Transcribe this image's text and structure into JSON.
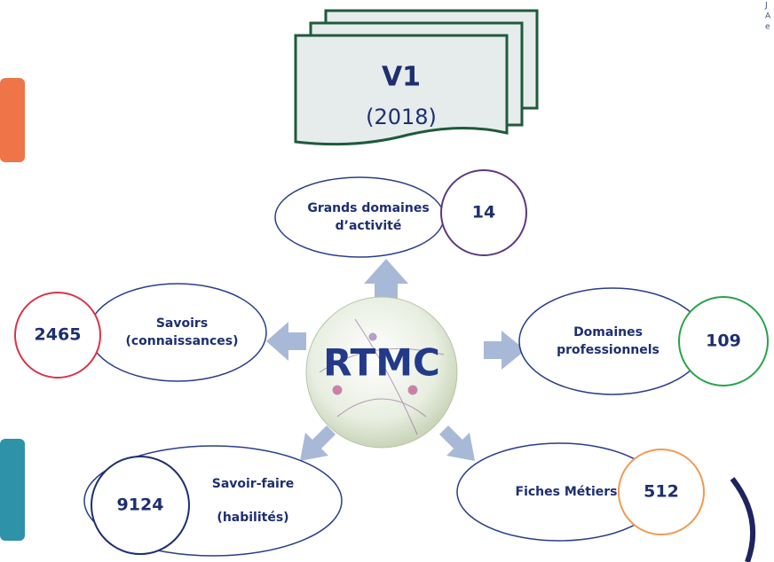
{
  "header": {
    "version": "V1",
    "year": "(2018)"
  },
  "center": "RTMC",
  "corner_text": [
    "J",
    "A",
    "e"
  ],
  "nodes": [
    {
      "label_lines": [
        "Grands domaines",
        "d’activité"
      ],
      "count": 14
    },
    {
      "label_lines": [
        "Savoirs",
        "(connaissances)"
      ],
      "count": 2465
    },
    {
      "label_lines": [
        "Domaines",
        "professionnels"
      ],
      "count": 109
    },
    {
      "label_lines": [
        "Savoir-faire",
        "(habilités)"
      ],
      "count": 9124
    },
    {
      "label_lines": [
        "Fiches Métiers"
      ],
      "count": 512
    }
  ]
}
